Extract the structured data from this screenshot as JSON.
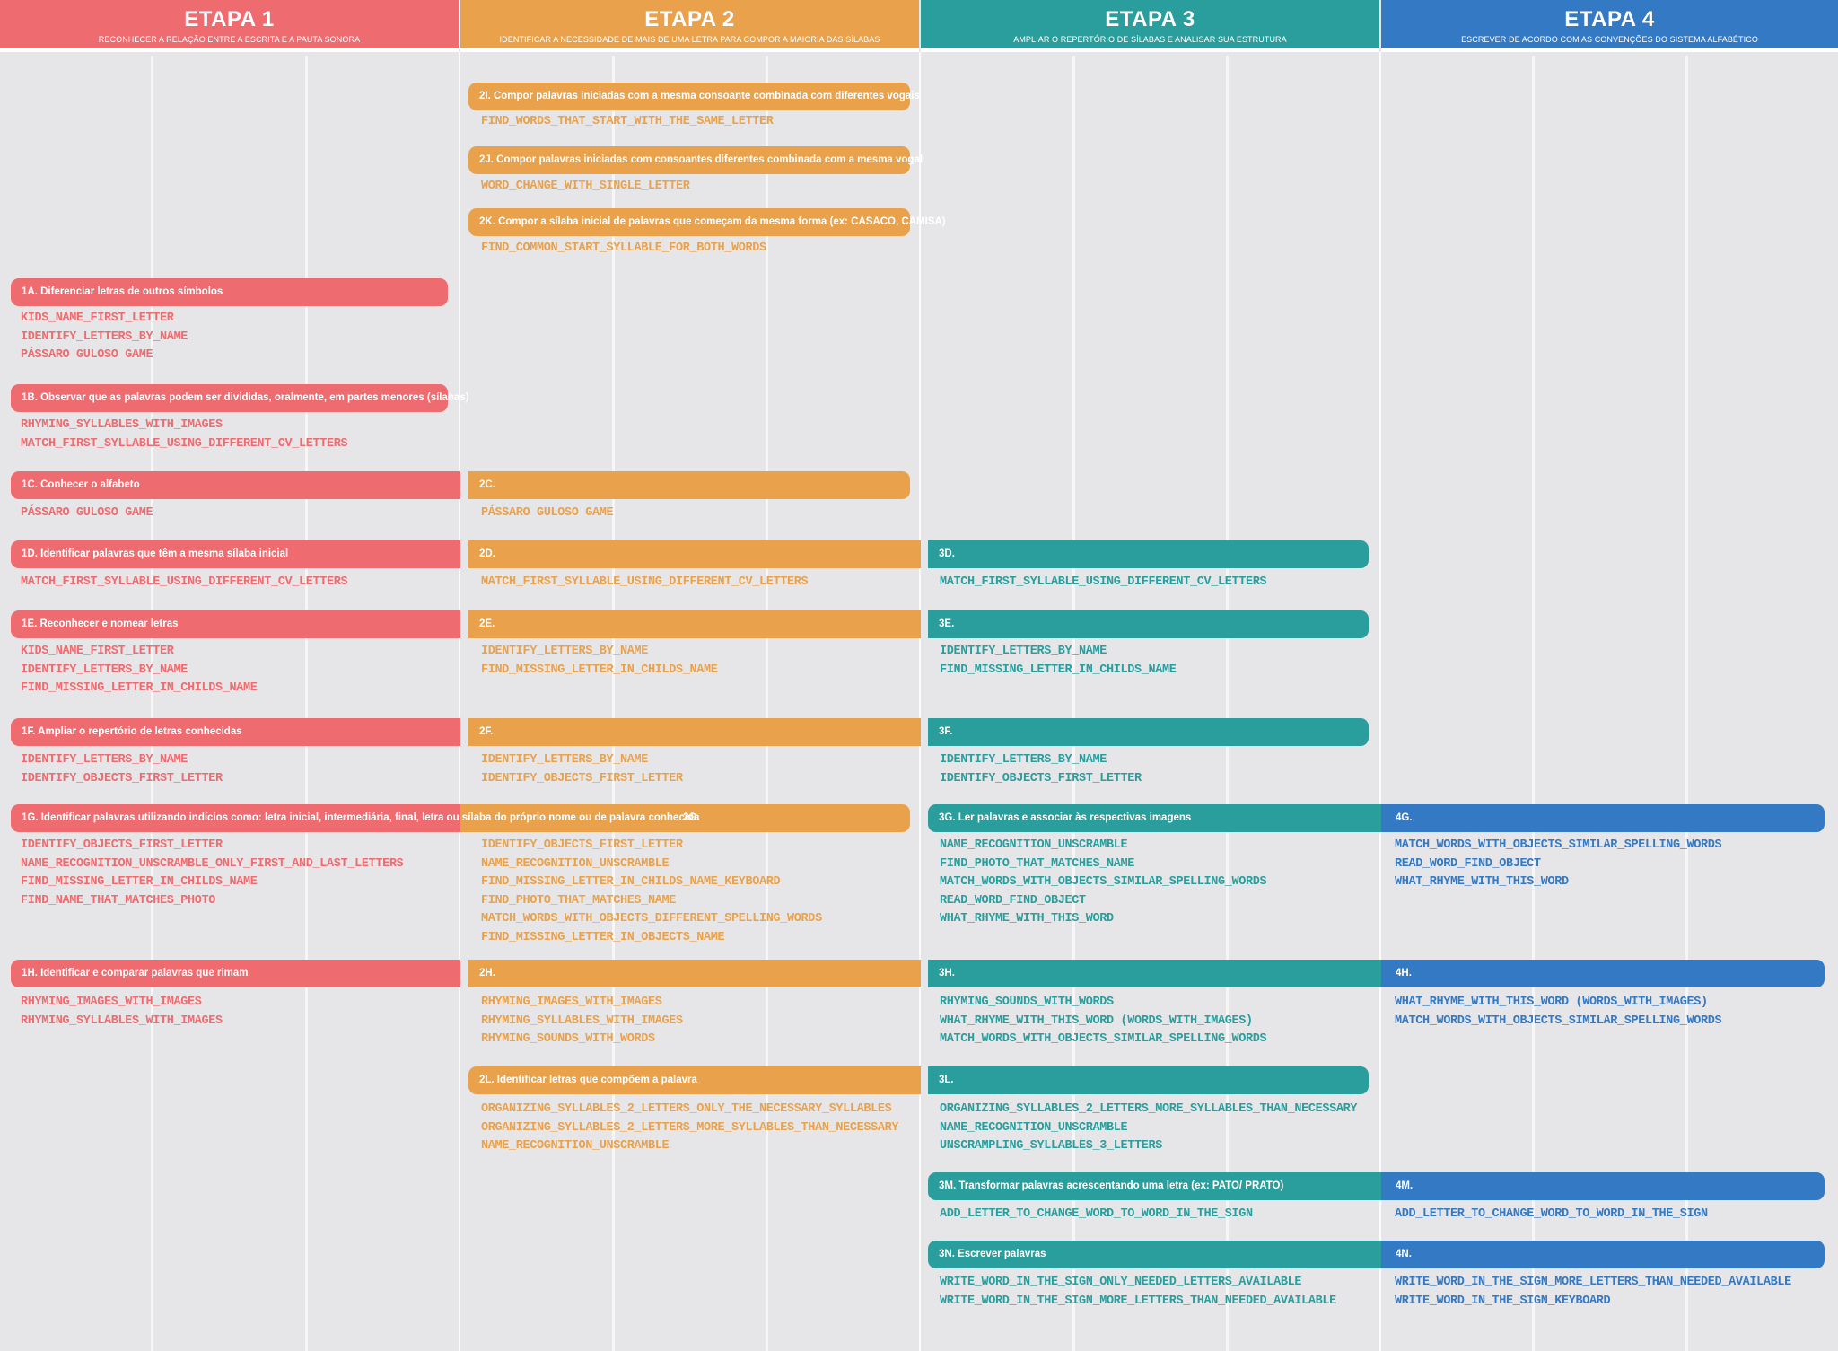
{
  "colors": {
    "etapa1": "#ee6b70",
    "etapa2": "#e9a24b",
    "etapa3": "#2a9e9c",
    "etapa4": "#3479c3"
  },
  "headers": [
    {
      "title": "ETAPA 1",
      "subtitle": "RECONHECER A RELAÇÃO ENTRE A ESCRITA E A PAUTA SONORA"
    },
    {
      "title": "ETAPA 2",
      "subtitle": "IDENTIFICAR A NECESSIDADE DE MAIS DE UMA LETRA PARA COMPOR A MAIORIA DAS SÍLABAS"
    },
    {
      "title": "ETAPA 3",
      "subtitle": "AMPLIAR O REPERTÓRIO DE SÍLABAS E ANALISAR SUA ESTRUTURA"
    },
    {
      "title": "ETAPA 4",
      "subtitle": "ESCREVER DE ACORDO COM AS CONVENÇÕES DO SISTEMA ALFABÉTICO"
    }
  ],
  "objectives": {
    "2I": {
      "label": "2I. Compor palavras iniciadas com a mesma consoante combinada com diferentes vogais",
      "items": [
        "FIND_WORDS_THAT_START_WITH_THE_SAME_LETTER"
      ]
    },
    "2J": {
      "label": "2J. Compor palavras iniciadas com consoantes diferentes combinada com a mesma vogal",
      "items": [
        "WORD_CHANGE_WITH_SINGLE_LETTER"
      ]
    },
    "2K": {
      "label": "2K. Compor a sílaba inicial de palavras que começam da mesma forma (ex: CASACO, CAMISA)",
      "items": [
        "FIND_COMMON_START_SYLLABLE_FOR_BOTH_WORDS"
      ]
    },
    "1A": {
      "label": "1A. Diferenciar letras de outros símbolos",
      "items": [
        "KIDS_NAME_FIRST_LETTER",
        "IDENTIFY_LETTERS_BY_NAME",
        "PÁSSARO GULOSO GAME"
      ]
    },
    "1B": {
      "label": "1B. Observar que as palavras podem ser divididas, oralmente, em partes menores (sílabas)",
      "items": [
        "RHYMING_SYLLABLES_WITH_IMAGES",
        "MATCH_FIRST_SYLLABLE_USING_DIFFERENT_CV_LETTERS"
      ]
    },
    "1C": {
      "label": "1C. Conhecer o alfabeto",
      "items": [
        "PÁSSARO GULOSO GAME"
      ]
    },
    "2C": {
      "label": "2C.",
      "items": [
        "PÁSSARO GULOSO GAME"
      ]
    },
    "1D": {
      "label": "1D. Identificar palavras que têm a mesma sílaba inicial",
      "items": [
        "MATCH_FIRST_SYLLABLE_USING_DIFFERENT_CV_LETTERS"
      ]
    },
    "2D": {
      "label": "2D.",
      "items": [
        "MATCH_FIRST_SYLLABLE_USING_DIFFERENT_CV_LETTERS"
      ]
    },
    "3D": {
      "label": "3D.",
      "items": [
        "MATCH_FIRST_SYLLABLE_USING_DIFFERENT_CV_LETTERS"
      ]
    },
    "1E": {
      "label": "1E. Reconhecer e nomear letras",
      "items": [
        "KIDS_NAME_FIRST_LETTER",
        "IDENTIFY_LETTERS_BY_NAME",
        "FIND_MISSING_LETTER_IN_CHILDS_NAME"
      ]
    },
    "2E": {
      "label": "2E.",
      "items": [
        "IDENTIFY_LETTERS_BY_NAME",
        "FIND_MISSING_LETTER_IN_CHILDS_NAME"
      ]
    },
    "3E": {
      "label": "3E.",
      "items": [
        "IDENTIFY_LETTERS_BY_NAME",
        "FIND_MISSING_LETTER_IN_CHILDS_NAME"
      ]
    },
    "1F": {
      "label": "1F. Ampliar o repertório de letras conhecidas",
      "items": [
        "IDENTIFY_LETTERS_BY_NAME",
        "IDENTIFY_OBJECTS_FIRST_LETTER"
      ]
    },
    "2F": {
      "label": "2F.",
      "items": [
        "IDENTIFY_LETTERS_BY_NAME",
        "IDENTIFY_OBJECTS_FIRST_LETTER"
      ]
    },
    "3F": {
      "label": "3F.",
      "items": [
        "IDENTIFY_LETTERS_BY_NAME",
        "IDENTIFY_OBJECTS_FIRST_LETTER"
      ]
    },
    "1G": {
      "label": "1G. Identificar palavras utilizando indícios como:  letra inicial, intermediária, final, letra ou sílaba do próprio nome ou de palavra conhecida",
      "items": [
        "IDENTIFY_OBJECTS_FIRST_LETTER",
        "NAME_RECOGNITION_UNSCRAMBLE_ONLY_FIRST_AND_LAST_LETTERS",
        "FIND_MISSING_LETTER_IN_CHILDS_NAME",
        "FIND_NAME_THAT_MATCHES_PHOTO"
      ]
    },
    "2G": {
      "label": "2G.",
      "items": [
        "IDENTIFY_OBJECTS_FIRST_LETTER",
        "NAME_RECOGNITION_UNSCRAMBLE",
        "FIND_MISSING_LETTER_IN_CHILDS_NAME_KEYBOARD",
        "FIND_PHOTO_THAT_MATCHES_NAME",
        "MATCH_WORDS_WITH_OBJECTS_DIFFERENT_SPELLING_WORDS",
        "FIND_MISSING_LETTER_IN_OBJECTS_NAME"
      ]
    },
    "3G": {
      "label": "3G. Ler palavras e associar às respectivas imagens",
      "items": [
        "NAME_RECOGNITION_UNSCRAMBLE",
        "FIND_PHOTO_THAT_MATCHES_NAME",
        "MATCH_WORDS_WITH_OBJECTS_SIMILAR_SPELLING_WORDS",
        "READ_WORD_FIND_OBJECT",
        "WHAT_RHYME_WITH_THIS_WORD"
      ]
    },
    "4G": {
      "label": "4G.",
      "items": [
        "MATCH_WORDS_WITH_OBJECTS_SIMILAR_SPELLING_WORDS",
        "READ_WORD_FIND_OBJECT",
        "WHAT_RHYME_WITH_THIS_WORD"
      ]
    },
    "1H": {
      "label": "1H. Identificar e comparar palavras que rimam",
      "items": [
        "RHYMING_IMAGES_WITH_IMAGES",
        "RHYMING_SYLLABLES_WITH_IMAGES"
      ]
    },
    "2H": {
      "label": "2H.",
      "items": [
        "RHYMING_IMAGES_WITH_IMAGES",
        "RHYMING_SYLLABLES_WITH_IMAGES",
        "RHYMING_SOUNDS_WITH_WORDS"
      ]
    },
    "3H": {
      "label": "3H.",
      "items": [
        "RHYMING_SOUNDS_WITH_WORDS",
        "WHAT_RHYME_WITH_THIS_WORD (WORDS_WITH_IMAGES)",
        "MATCH_WORDS_WITH_OBJECTS_SIMILAR_SPELLING_WORDS"
      ]
    },
    "4H": {
      "label": "4H.",
      "items": [
        "WHAT_RHYME_WITH_THIS_WORD (WORDS_WITH_IMAGES)",
        "MATCH_WORDS_WITH_OBJECTS_SIMILAR_SPELLING_WORDS"
      ]
    },
    "2L": {
      "label": "2L. Identificar letras que compõem a palavra",
      "items": [
        "ORGANIZING_SYLLABLES_2_LETTERS_ONLY_THE_NECESSARY_SYLLABLES",
        "ORGANIZING_SYLLABLES_2_LETTERS_MORE_SYLLABLES_THAN_NECESSARY",
        "NAME_RECOGNITION_UNSCRAMBLE"
      ]
    },
    "3L": {
      "label": "3L.",
      "items": [
        "ORGANIZING_SYLLABLES_2_LETTERS_MORE_SYLLABLES_THAN_NECESSARY",
        "NAME_RECOGNITION_UNSCRAMBLE",
        "UNSCRAMPLING_SYLLABLES_3_LETTERS"
      ]
    },
    "3M": {
      "label": "3M. Transformar palavras acrescentando uma letra (ex: PATO/ PRATO)",
      "items": [
        "ADD_LETTER_TO_CHANGE_WORD_TO_WORD_IN_THE_SIGN"
      ]
    },
    "4M": {
      "label": "4M.",
      "items": [
        "ADD_LETTER_TO_CHANGE_WORD_TO_WORD_IN_THE_SIGN"
      ]
    },
    "3N": {
      "label": "3N. Escrever palavras",
      "items": [
        "WRITE_WORD_IN_THE_SIGN_ONLY_NEEDED_LETTERS_AVAILABLE",
        "WRITE_WORD_IN_THE_SIGN_MORE_LETTERS_THAN_NEEDED_AVAILABLE"
      ]
    },
    "4N": {
      "label": "4N.",
      "items": [
        "WRITE_WORD_IN_THE_SIGN_MORE_LETTERS_THAN_NEEDED_AVAILABLE",
        "WRITE_WORD_IN_THE_SIGN_KEYBOARD"
      ]
    }
  }
}
